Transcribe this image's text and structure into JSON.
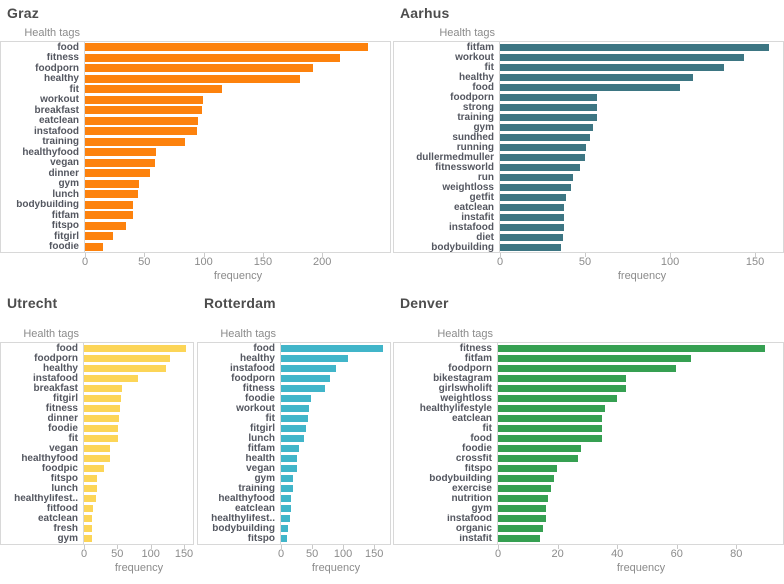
{
  "chart_data": [
    {
      "type": "bar",
      "orientation": "horizontal",
      "title": "Graz",
      "color": "#fd820d",
      "categories_label": "Health tags",
      "xlabel": "frequency",
      "xlim": [
        0,
        258
      ],
      "xticks": [
        0,
        50,
        100,
        150,
        200
      ],
      "grid": false,
      "categories": [
        "food",
        "fitness",
        "foodporn",
        "healthy",
        "fit",
        "workout",
        "breakfast",
        "eatclean",
        "instafood",
        "training",
        "healthyfood",
        "vegan",
        "dinner",
        "gym",
        "lunch",
        "bodybuilding",
        "fitfam",
        "fitspo",
        "fitgirl",
        "foodie"
      ],
      "values": [
        239,
        216,
        193,
        182,
        116,
        100,
        99,
        96,
        95,
        85,
        60,
        59,
        55,
        46,
        45,
        41,
        41,
        35,
        24,
        15
      ]
    },
    {
      "type": "bar",
      "orientation": "horizontal",
      "title": "Aarhus",
      "color": "#3d7683",
      "categories_label": "Health tags",
      "xlabel": "frequency",
      "xlim": [
        0,
        167
      ],
      "xticks": [
        0,
        50,
        100,
        150
      ],
      "grid": false,
      "categories": [
        "fitfam",
        "workout",
        "fit",
        "healthy",
        "food",
        "foodporn",
        "strong",
        "training",
        "gym",
        "sundhed",
        "running",
        "dullermedmuller",
        "fitnessworld",
        "run",
        "weightloss",
        "getfit",
        "eatclean",
        "instafit",
        "instafood",
        "diet",
        "bodybuilding"
      ],
      "values": [
        159,
        144,
        132,
        114,
        106,
        57,
        57,
        57,
        55,
        53,
        51,
        50,
        47,
        43,
        42,
        39,
        38,
        38,
        38,
        37,
        36
      ]
    },
    {
      "type": "bar",
      "orientation": "horizontal",
      "title": "Utrecht",
      "color": "#fcd557",
      "categories_label": "Health tags",
      "xlabel": "frequency",
      "xlim": [
        0,
        165
      ],
      "xticks": [
        0,
        50,
        100,
        150
      ],
      "grid": false,
      "categories": [
        "food",
        "foodporn",
        "healthy",
        "instafood",
        "breakfast",
        "fitgirl",
        "fitness",
        "dinner",
        "foodie",
        "fit",
        "vegan",
        "healthyfood",
        "foodpic",
        "fitspo",
        "lunch",
        "healthylifest..",
        "fitfood",
        "eatclean",
        "fresh",
        "gym"
      ],
      "values": [
        155,
        130,
        124,
        81,
        57,
        56,
        55,
        53,
        52,
        51,
        39,
        39,
        30,
        20,
        20,
        18,
        13,
        12,
        12,
        12
      ]
    },
    {
      "type": "bar",
      "orientation": "horizontal",
      "title": "Rotterdam",
      "color": "#41b5c9",
      "categories_label": "Health tags",
      "xlabel": "frequency",
      "xlim": [
        0,
        177
      ],
      "xticks": [
        0,
        50,
        100,
        150
      ],
      "grid": false,
      "categories": [
        "food",
        "healthy",
        "instafood",
        "foodporn",
        "fitness",
        "foodie",
        "workout",
        "fit",
        "fitgirl",
        "lunch",
        "fitfam",
        "health",
        "vegan",
        "gym",
        "training",
        "healthyfood",
        "eatclean",
        "healthylifest..",
        "bodybuilding",
        "fitspo"
      ],
      "values": [
        165,
        108,
        90,
        80,
        72,
        48,
        45,
        44,
        40,
        37,
        30,
        26,
        26,
        20,
        19,
        17,
        16,
        15,
        12,
        10
      ]
    },
    {
      "type": "bar",
      "orientation": "horizontal",
      "title": "Denver",
      "color": "#36a052",
      "categories_label": "Health tags",
      "xlabel": "frequency",
      "xlim": [
        0,
        96
      ],
      "xticks": [
        0,
        20,
        40,
        60,
        80
      ],
      "grid": false,
      "categories": [
        "fitness",
        "fitfam",
        "foodporn",
        "bikestagram",
        "girlswholift",
        "weightloss",
        "healthylifestyle",
        "eatclean",
        "fit",
        "food",
        "foodie",
        "crossfit",
        "fitspo",
        "bodybuilding",
        "exercise",
        "nutrition",
        "gym",
        "instafood",
        "organic",
        "instafit"
      ],
      "values": [
        90,
        65,
        60,
        43,
        43,
        40,
        36,
        35,
        35,
        35,
        28,
        27,
        20,
        19,
        18,
        17,
        16,
        16,
        15,
        14
      ]
    }
  ]
}
